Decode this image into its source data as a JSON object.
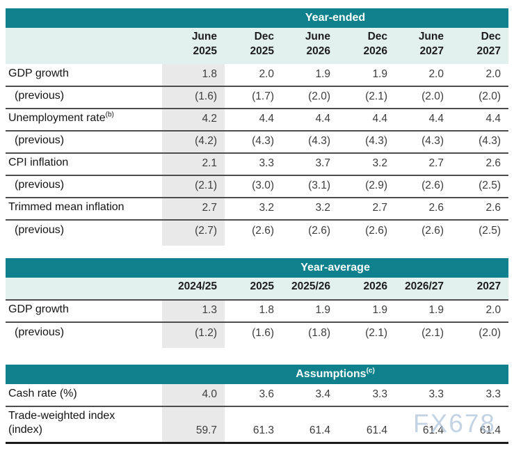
{
  "page": {
    "watermark": "FX678"
  },
  "colors": {
    "teal": "#0e818c",
    "header_band": "#e3f1ee",
    "shaded_column": "#e9e9e9",
    "row_rule": "#4d4d50"
  },
  "tables": [
    {
      "title": "Year-ended",
      "title_sup": "",
      "columns": [
        [
          "June",
          "2025"
        ],
        [
          "Dec",
          "2025"
        ],
        [
          "June",
          "2026"
        ],
        [
          "Dec",
          "2026"
        ],
        [
          "June",
          "2027"
        ],
        [
          "Dec",
          "2027"
        ]
      ],
      "rows": [
        {
          "label": "GDP growth",
          "sup": "",
          "indent": false,
          "values": [
            "1.8",
            "2.0",
            "1.9",
            "1.9",
            "2.0",
            "2.0"
          ]
        },
        {
          "label": "(previous)",
          "sup": "",
          "indent": true,
          "values": [
            "(1.6)",
            "(1.7)",
            "(2.0)",
            "(2.1)",
            "(2.0)",
            "(2.0)"
          ]
        },
        {
          "label": "Unemployment rate",
          "sup": "(b)",
          "indent": false,
          "values": [
            "4.2",
            "4.4",
            "4.4",
            "4.4",
            "4.4",
            "4.4"
          ]
        },
        {
          "label": "(previous)",
          "sup": "",
          "indent": true,
          "values": [
            "(4.2)",
            "(4.3)",
            "(4.3)",
            "(4.3)",
            "(4.3)",
            "(4.3)"
          ]
        },
        {
          "label": "CPI inflation",
          "sup": "",
          "indent": false,
          "values": [
            "2.1",
            "3.3",
            "3.7",
            "3.2",
            "2.7",
            "2.6"
          ]
        },
        {
          "label": "(previous)",
          "sup": "",
          "indent": true,
          "values": [
            "(2.1)",
            "(3.0)",
            "(3.1)",
            "(2.9)",
            "(2.6)",
            "(2.5)"
          ]
        },
        {
          "label": "Trimmed mean inflation",
          "sup": "",
          "indent": false,
          "values": [
            "2.7",
            "3.2",
            "3.2",
            "2.7",
            "2.6",
            "2.6"
          ]
        },
        {
          "label": "(previous)",
          "sup": "",
          "indent": true,
          "values": [
            "(2.7)",
            "(2.6)",
            "(2.6)",
            "(2.6)",
            "(2.6)",
            "(2.5)"
          ]
        }
      ]
    },
    {
      "title": "Year-average",
      "title_sup": "",
      "columns": [
        [
          "2024/25"
        ],
        [
          "2025"
        ],
        [
          "2025/26"
        ],
        [
          "2026"
        ],
        [
          "2026/27"
        ],
        [
          "2027"
        ]
      ],
      "rows": [
        {
          "label": "GDP growth",
          "sup": "",
          "indent": false,
          "values": [
            "1.3",
            "1.8",
            "1.9",
            "1.9",
            "1.9",
            "2.0"
          ]
        },
        {
          "label": "(previous)",
          "sup": "",
          "indent": true,
          "values": [
            "(1.2)",
            "(1.6)",
            "(1.8)",
            "(2.1)",
            "(2.1)",
            "(2.0)"
          ]
        }
      ]
    },
    {
      "title": "Assumptions",
      "title_sup": "(c)",
      "columns": [],
      "rows": [
        {
          "label": "Cash rate (%)",
          "sup": "",
          "indent": false,
          "values": [
            "4.0",
            "3.6",
            "3.4",
            "3.3",
            "3.3",
            "3.3"
          ]
        },
        {
          "label": [
            "Trade-weighted index",
            "(index)"
          ],
          "sup": "",
          "indent": false,
          "values": [
            "59.7",
            "61.3",
            "61.4",
            "61.4",
            "61.4",
            "61.4"
          ]
        }
      ]
    }
  ]
}
